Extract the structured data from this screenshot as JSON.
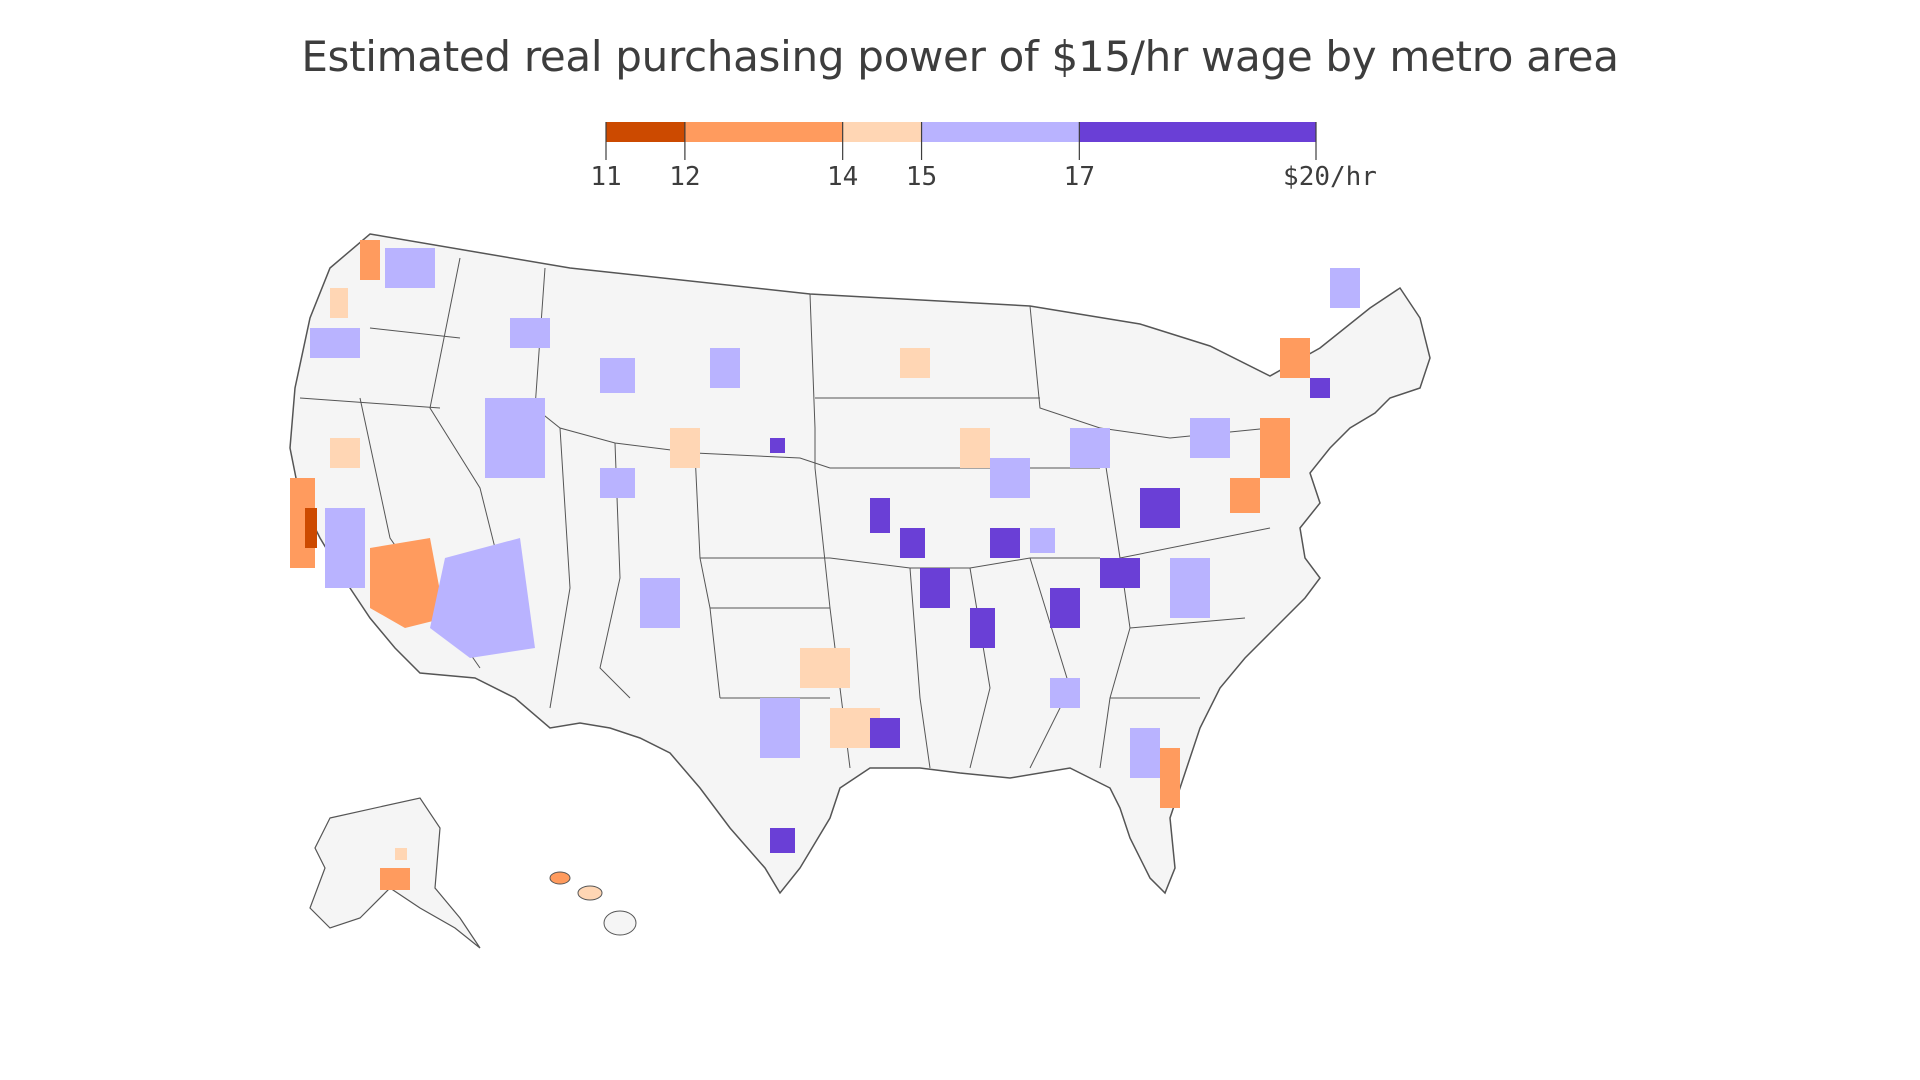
{
  "title": "Estimated real purchasing power of $15/hr wage by metro area",
  "legend": {
    "min": 11,
    "max": 20,
    "bins": [
      {
        "from": 11,
        "to": 12,
        "color": "#cc4a00"
      },
      {
        "from": 12,
        "to": 14,
        "color": "#ff9b5e"
      },
      {
        "from": 14,
        "to": 15,
        "color": "#ffd6b4"
      },
      {
        "from": 15,
        "to": 17,
        "color": "#b9b3ff"
      },
      {
        "from": 17,
        "to": 20,
        "color": "#6a3fd6"
      }
    ],
    "ticks": [
      {
        "value": 11,
        "label": "11"
      },
      {
        "value": 12,
        "label": "12"
      },
      {
        "value": 14,
        "label": "14"
      },
      {
        "value": 15,
        "label": "15"
      },
      {
        "value": 17,
        "label": "17"
      },
      {
        "value": 20,
        "label": "$20/hr"
      }
    ]
  },
  "colors": {
    "land": "#f5f5f5",
    "border": "#555555",
    "text": "#3d3d3d"
  },
  "map": {
    "regions": [
      "contiguous-us",
      "alaska",
      "hawaii"
    ]
  }
}
